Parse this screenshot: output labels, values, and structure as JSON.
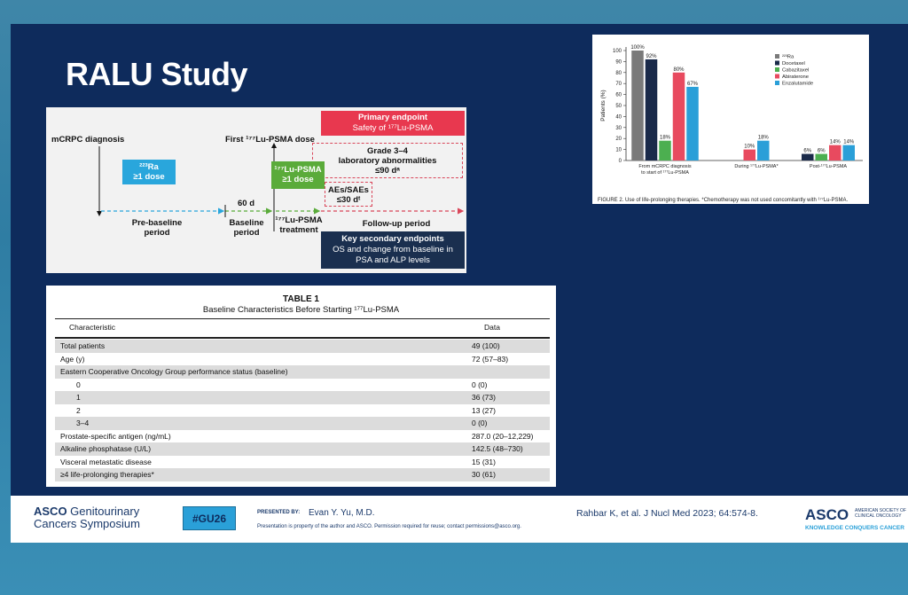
{
  "slide": {
    "title": "RALU Study"
  },
  "timeline": {
    "mcrpc_label": "mCRPC diagnosis",
    "ra_box": {
      "line1": "²²³Ra",
      "line2": "≥1 dose"
    },
    "first_dose_label": "First ¹⁷⁷Lu-PSMA dose",
    "primary_endpoint": {
      "title": "Primary endpoint",
      "subtitle": "Safety of ¹⁷⁷Lu-PSMA"
    },
    "grade_box": {
      "line1": "Grade 3–4",
      "line2": "laboratory abnormalities",
      "line3": "≤90 dᵃ"
    },
    "lu_box": {
      "line1": "¹⁷⁷Lu-PSMA",
      "line2": "≥1 dose"
    },
    "ae_box": {
      "line1": "AEs/SAEs",
      "line2": "≤30 dᵗ"
    },
    "days_label": "60 d",
    "prebaseline_label": {
      "line1": "Pre-baseline",
      "line2": "period"
    },
    "baseline_label": {
      "line1": "Baseline",
      "line2": "period"
    },
    "treatment_label": {
      "line1": "¹⁷⁷Lu-PSMA",
      "line2": "treatment"
    },
    "followup_label": "Follow-up period",
    "secondary_endpoint": {
      "title": "Key secondary endpoints",
      "line1": "OS and change from baseline in",
      "line2": "PSA and ALP levels"
    },
    "colors": {
      "blue": "#29a6dc",
      "green": "#5aab3a",
      "red": "#e8384f",
      "navy": "#1a2f4f"
    }
  },
  "figure": {
    "caption": "FIGURE 2.  Use of life-prolonging therapies. *Chemotherapy was not used concomitantly with ¹⁷⁷Lu-PSMA.",
    "chart_data": {
      "type": "bar",
      "ylabel": "Patients (%)",
      "ylim": [
        0,
        100
      ],
      "yticks": [
        "0",
        "10",
        "20",
        "30",
        "40",
        "50",
        "60",
        "70",
        "80",
        "90",
        "100"
      ],
      "categories": [
        "From mCRPC diagnosis to start of ¹⁷⁷Lu-PSMA",
        "During ¹⁷⁷Lu-PSMA*",
        "Post-¹⁷⁷Lu-PSMA"
      ],
      "category_lines": [
        [
          "From mCRPC diagnosis",
          "to start of ¹⁷⁷Lu-PSMA"
        ],
        [
          "During ¹⁷⁷Lu-PSMA*",
          ""
        ],
        [
          "Post-¹⁷⁷Lu-PSMA",
          ""
        ]
      ],
      "legend_position": "top-right",
      "series": [
        {
          "name": "²²³Ra",
          "color": "#7a7a7a",
          "values": [
            100,
            null,
            null
          ],
          "labels": [
            "100%",
            "",
            ""
          ]
        },
        {
          "name": "Docetaxel",
          "color": "#1a2a4a",
          "values": [
            92,
            null,
            6
          ],
          "labels": [
            "92%",
            "",
            "6%"
          ]
        },
        {
          "name": "Cabazitaxel",
          "color": "#4caf50",
          "values": [
            18,
            null,
            6
          ],
          "labels": [
            "18%",
            "",
            "6%"
          ]
        },
        {
          "name": "Abiraterone",
          "color": "#e84a5f",
          "values": [
            80,
            10,
            14
          ],
          "labels": [
            "80%",
            "10%",
            "14%"
          ]
        },
        {
          "name": "Enzalutamide",
          "color": "#2a9fd8",
          "values": [
            67,
            18,
            14
          ],
          "labels": [
            "67%",
            "18%",
            "14%"
          ]
        }
      ]
    }
  },
  "table": {
    "title": "TABLE 1",
    "subtitle": "Baseline Characteristics Before Starting ¹⁷⁷Lu-PSMA",
    "headers": {
      "characteristic": "Characteristic",
      "data": "Data"
    },
    "rows": [
      {
        "label": "Total patients",
        "value": "49 (100)",
        "indent": false
      },
      {
        "label": "Age (y)",
        "value": "72 (57–83)",
        "indent": false
      },
      {
        "label": "Eastern Cooperative Oncology Group performance status (baseline)",
        "value": "",
        "indent": false
      },
      {
        "label": "0",
        "value": "0 (0)",
        "indent": true
      },
      {
        "label": "1",
        "value": "36 (73)",
        "indent": true
      },
      {
        "label": "2",
        "value": "13 (27)",
        "indent": true
      },
      {
        "label": "3–4",
        "value": "0 (0)",
        "indent": true
      },
      {
        "label": "Prostate-specific antigen (ng/mL)",
        "value": "287.0 (20–12,229)",
        "indent": false
      },
      {
        "label": "Alkaline phosphatase (U/L)",
        "value": "142.5 (48–730)",
        "indent": false
      },
      {
        "label": "Visceral metastatic disease",
        "value": "15 (31)",
        "indent": false
      },
      {
        "label": "≥4 life-prolonging therapies*",
        "value": "30 (61)",
        "indent": false
      }
    ]
  },
  "footer": {
    "asco_gu_line1_bold": "ASCO",
    "asco_gu_line1_rest": " Genitourinary",
    "asco_gu_line2": "Cancers Symposium",
    "hashtag": "#GU26",
    "presented_by_label": "PRESENTED BY:",
    "presenter": "Evan Y. Yu, M.D.",
    "disclaimer": "Presentation is property of the author and ASCO. Permission required for reuse; contact permissions@asco.org.",
    "citation": "Rahbar K, et al.  J Nucl Med 2023; 64:574-8.",
    "asco_logo": "ASCO",
    "asco_logo_sub": "AMERICAN SOCIETY OF CLINICAL ONCOLOGY",
    "asco_tagline": "KNOWLEDGE CONQUERS CANCER"
  }
}
